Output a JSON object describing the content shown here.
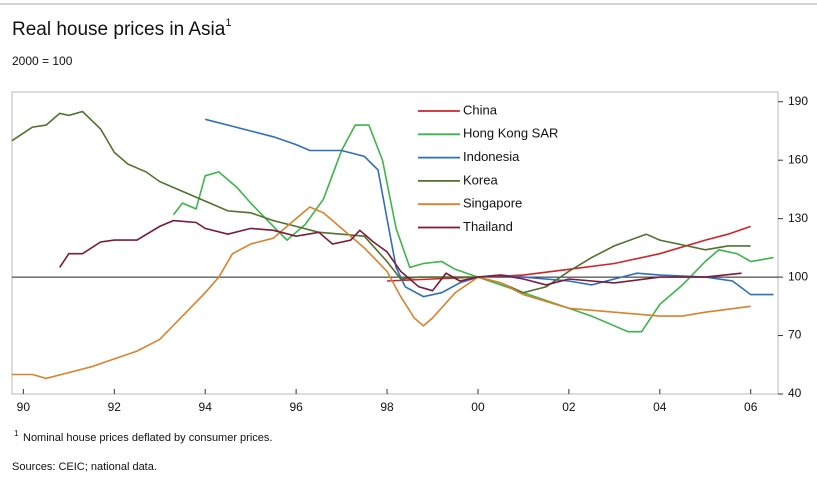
{
  "chart_data": {
    "type": "line",
    "title": "Real house prices in Asia",
    "title_marker": "1",
    "subtitle": "2000 = 100",
    "footnote_marker": "1",
    "footnote": "Nominal house prices deflated by consumer prices.",
    "source": "Sources: CEIC; national data.",
    "xlim": [
      1989.75,
      2006.6
    ],
    "xticks": [
      {
        "value": 1990,
        "label": "90"
      },
      {
        "value": 1992,
        "label": "92"
      },
      {
        "value": 1994,
        "label": "94"
      },
      {
        "value": 1996,
        "label": "96"
      },
      {
        "value": 1998,
        "label": "98"
      },
      {
        "value": 2000,
        "label": "00"
      },
      {
        "value": 2002,
        "label": "02"
      },
      {
        "value": 2004,
        "label": "04"
      },
      {
        "value": 2006,
        "label": "06"
      }
    ],
    "ylim": [
      40,
      195
    ],
    "yticks": [
      40,
      70,
      100,
      130,
      160,
      190
    ],
    "reference_line": 100,
    "series": [
      {
        "name": "China",
        "color": "#d2232a",
        "x": [
          1998,
          1999,
          2000,
          2001,
          2002,
          2003,
          2004,
          2005,
          2005.5,
          2006
        ],
        "values": [
          98,
          99,
          100,
          101,
          104,
          107,
          112,
          119,
          122,
          126
        ]
      },
      {
        "name": "Hong Kong SAR",
        "color": "#3cb54a",
        "x": [
          1993.3,
          1993.5,
          1993.8,
          1994,
          1994.3,
          1994.7,
          1995,
          1995.5,
          1995.8,
          1996.2,
          1996.6,
          1997,
          1997.3,
          1997.6,
          1997.9,
          1998.2,
          1998.5,
          1998.8,
          1999.2,
          1999.5,
          2000,
          2000.5,
          2001,
          2001.5,
          2002,
          2002.5,
          2003,
          2003.3,
          2003.6,
          2004,
          2004.5,
          2005,
          2005.3,
          2005.7,
          2006,
          2006.5
        ],
        "values": [
          132,
          138,
          135,
          152,
          154,
          146,
          138,
          126,
          119,
          127,
          140,
          165,
          178,
          178,
          160,
          125,
          105,
          107,
          108,
          104,
          100,
          96,
          92,
          88,
          84,
          80,
          75,
          72,
          72,
          86,
          96,
          108,
          114,
          112,
          108,
          110
        ]
      },
      {
        "name": "Indonesia",
        "color": "#2e6fbd",
        "x": [
          1994,
          1994.5,
          1995,
          1995.5,
          1996,
          1996.3,
          1997,
          1997.5,
          1997.8,
          1998,
          1998.2,
          1998.4,
          1998.8,
          1999.2,
          1999.6,
          2000,
          2000.5,
          2001,
          2002,
          2002.5,
          2003,
          2003.5,
          2004,
          2005,
          2005.6,
          2006,
          2006.5
        ],
        "values": [
          181,
          178,
          175,
          172,
          168,
          165,
          165,
          162,
          155,
          130,
          105,
          95,
          90,
          92,
          97,
          100,
          101,
          100,
          98,
          96,
          99,
          102,
          101,
          100,
          98,
          91,
          91
        ]
      },
      {
        "name": "Korea",
        "color": "#52702e",
        "x": [
          1989.75,
          1990.2,
          1990.5,
          1990.8,
          1991,
          1991.3,
          1991.7,
          1992,
          1992.3,
          1992.7,
          1993,
          1993.5,
          1994,
          1994.5,
          1995,
          1995.5,
          1996,
          1996.5,
          1997,
          1997.5,
          1998,
          1998.3,
          1998.7,
          1999,
          2000,
          2000.5,
          2001,
          2001.5,
          2002,
          2002.5,
          2003,
          2003.7,
          2004,
          2004.6,
          2005,
          2005.5,
          2006
        ],
        "values": [
          170,
          177,
          178,
          184,
          183,
          185,
          176,
          164,
          158,
          154,
          149,
          144,
          139,
          134,
          133,
          129,
          126,
          123,
          122,
          121,
          108,
          99,
          100,
          100,
          100,
          97,
          92,
          95,
          103,
          110,
          116,
          122,
          119,
          116,
          114,
          116,
          116
        ]
      },
      {
        "name": "Singapore",
        "color": "#d9822b",
        "x": [
          1989.75,
          1990.2,
          1990.5,
          1991,
          1991.5,
          1992,
          1992.5,
          1993,
          1993.5,
          1994,
          1994.3,
          1994.6,
          1995,
          1995.5,
          1995.8,
          1996,
          1996.3,
          1996.6,
          1997,
          1997.5,
          1998,
          1998.3,
          1998.6,
          1998.8,
          1999,
          1999.5,
          2000,
          2000.5,
          2001,
          2002,
          2003,
          2004,
          2004.5,
          2005,
          2006
        ],
        "values": [
          50,
          50,
          48,
          51,
          54,
          58,
          62,
          68,
          80,
          92,
          100,
          112,
          117,
          120,
          126,
          130,
          136,
          133,
          125,
          115,
          103,
          90,
          79,
          75,
          79,
          92,
          100,
          97,
          91,
          84,
          82,
          80,
          80,
          82,
          85
        ]
      },
      {
        "name": "Thailand",
        "color": "#7b1a3a",
        "x": [
          1990.8,
          1991,
          1991.3,
          1991.7,
          1992,
          1992.5,
          1993,
          1993.3,
          1993.8,
          1994,
          1994.5,
          1995,
          1995.5,
          1996,
          1996.5,
          1996.8,
          1997.2,
          1997.4,
          1997.7,
          1998,
          1998.3,
          1998.7,
          1999,
          1999.3,
          1999.6,
          2000,
          2000.5,
          2001,
          2001.5,
          2002,
          2003,
          2004,
          2005,
          2005.8
        ],
        "values": [
          105,
          112,
          112,
          118,
          119,
          119,
          126,
          129,
          128,
          125,
          122,
          125,
          124,
          121,
          123,
          117,
          119,
          124,
          118,
          113,
          103,
          95,
          93,
          102,
          98,
          100,
          101,
          99,
          96,
          99,
          97,
          100,
          100,
          102
        ]
      }
    ]
  }
}
